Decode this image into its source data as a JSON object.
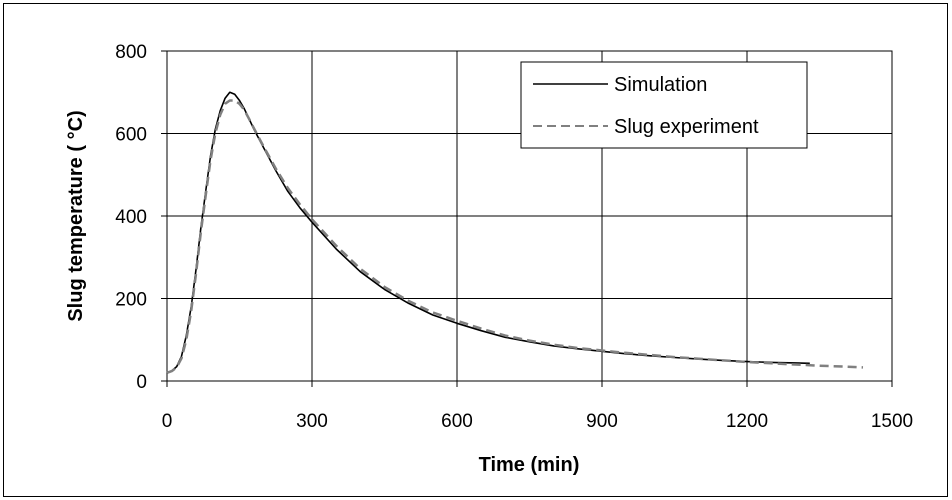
{
  "chart_data": {
    "type": "line",
    "xlabel": "Time (min)",
    "ylabel": "Slug temperature ( °C)",
    "xlim": [
      0,
      1500
    ],
    "ylim": [
      0,
      800
    ],
    "xticks": [
      0,
      300,
      600,
      900,
      1200,
      1500
    ],
    "yticks": [
      0,
      200,
      400,
      600,
      800
    ],
    "grid": true,
    "legend_position": "top-right",
    "series": [
      {
        "name": "Simulation",
        "color": "#000000",
        "style": "solid",
        "x": [
          0,
          10,
          20,
          30,
          40,
          50,
          60,
          70,
          80,
          90,
          100,
          110,
          120,
          130,
          140,
          150,
          160,
          170,
          180,
          200,
          225,
          250,
          275,
          300,
          350,
          400,
          450,
          500,
          550,
          600,
          650,
          700,
          750,
          800,
          850,
          900,
          950,
          1000,
          1050,
          1100,
          1150,
          1200,
          1250,
          1300,
          1330
        ],
        "y": [
          20,
          25,
          35,
          60,
          110,
          180,
          270,
          370,
          460,
          545,
          610,
          655,
          685,
          700,
          695,
          680,
          660,
          635,
          610,
          565,
          510,
          460,
          420,
          385,
          320,
          265,
          222,
          188,
          160,
          140,
          122,
          106,
          95,
          85,
          78,
          72,
          66,
          61,
          57,
          53,
          50,
          47,
          45,
          44,
          43
        ]
      },
      {
        "name": "Slug experiment",
        "color": "#808080",
        "style": "dashed",
        "x": [
          0,
          10,
          20,
          30,
          40,
          50,
          60,
          70,
          80,
          90,
          100,
          110,
          120,
          130,
          140,
          150,
          160,
          170,
          180,
          200,
          225,
          250,
          275,
          300,
          350,
          400,
          450,
          500,
          550,
          600,
          650,
          700,
          750,
          800,
          850,
          900,
          950,
          1000,
          1050,
          1100,
          1150,
          1200,
          1250,
          1300,
          1350,
          1400,
          1440
        ],
        "y": [
          20,
          24,
          33,
          55,
          100,
          170,
          260,
          360,
          450,
          535,
          600,
          645,
          672,
          680,
          680,
          672,
          657,
          635,
          612,
          568,
          515,
          468,
          428,
          392,
          328,
          272,
          228,
          194,
          166,
          146,
          127,
          110,
          98,
          88,
          80,
          74,
          68,
          63,
          58,
          54,
          50,
          46,
          43,
          40,
          37,
          35,
          33
        ]
      }
    ]
  }
}
